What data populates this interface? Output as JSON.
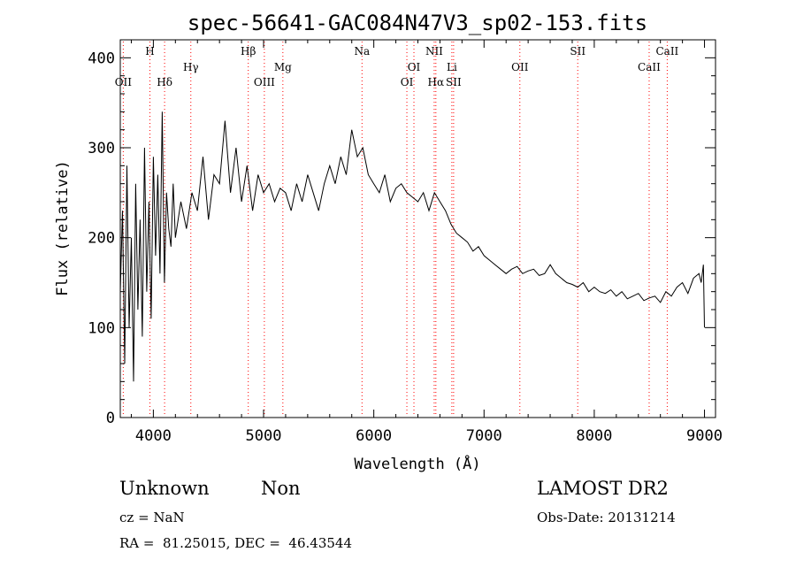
{
  "chart_data": {
    "type": "line",
    "title": "spec-56641-GAC084N47V3_sp02-153.fits",
    "xlabel": "Wavelength (Å)",
    "ylabel": "Flux (relative)",
    "xlim": [
      3700,
      9100
    ],
    "ylim": [
      0,
      420
    ],
    "xticks": [
      4000,
      5000,
      6000,
      7000,
      8000,
      9000
    ],
    "yticks": [
      0,
      100,
      200,
      300,
      400
    ],
    "line_color": "#000000",
    "marker_color": "#ff0000",
    "grid": false,
    "series": [
      {
        "x": [
          3700,
          3720,
          3740,
          3760,
          3780,
          3800,
          3820,
          3840,
          3860,
          3880,
          3900,
          3920,
          3940,
          3960,
          3980,
          4000,
          4020,
          4040,
          4060,
          4080,
          4100,
          4120,
          4140,
          4160,
          4180,
          4200,
          4250,
          4300,
          4350,
          4400,
          4450,
          4500,
          4550,
          4600,
          4650,
          4700,
          4750,
          4800,
          4850,
          4900,
          4950,
          5000,
          5050,
          5100,
          5150,
          5200,
          5250,
          5300,
          5350,
          5400,
          5450,
          5500,
          5550,
          5600,
          5650,
          5700,
          5750,
          5800,
          5850,
          5900,
          5950,
          6000,
          6050,
          6100,
          6150,
          6200,
          6250,
          6300,
          6350,
          6400,
          6450,
          6500,
          6550,
          6600,
          6650,
          6700,
          6750,
          6800,
          6850,
          6900,
          6950,
          7000,
          7050,
          7100,
          7150,
          7200,
          7250,
          7300,
          7350,
          7400,
          7450,
          7500,
          7550,
          7600,
          7650,
          7700,
          7750,
          7800,
          7850,
          7900,
          7950,
          8000,
          8050,
          8100,
          8150,
          8200,
          8250,
          8300,
          8350,
          8400,
          8450,
          8500,
          8550,
          8600,
          8650,
          8700,
          8750,
          8800,
          8850,
          8900,
          8950,
          8970,
          8990,
          9000
        ],
        "y": [
          140,
          230,
          60,
          280,
          100,
          200,
          40,
          260,
          120,
          220,
          90,
          300,
          140,
          240,
          110,
          290,
          180,
          270,
          160,
          340,
          150,
          250,
          210,
          190,
          260,
          200,
          240,
          210,
          250,
          230,
          290,
          220,
          270,
          260,
          330,
          250,
          300,
          240,
          280,
          230,
          270,
          250,
          260,
          240,
          255,
          250,
          230,
          260,
          240,
          270,
          250,
          230,
          260,
          280,
          260,
          290,
          270,
          320,
          290,
          300,
          270,
          260,
          250,
          270,
          240,
          255,
          260,
          250,
          245,
          240,
          250,
          230,
          250,
          240,
          230,
          215,
          205,
          200,
          195,
          185,
          190,
          180,
          175,
          170,
          165,
          160,
          165,
          168,
          160,
          163,
          165,
          158,
          160,
          170,
          160,
          155,
          150,
          148,
          145,
          150,
          140,
          145,
          140,
          138,
          142,
          135,
          140,
          132,
          135,
          138,
          130,
          133,
          135,
          128,
          140,
          135,
          145,
          150,
          138,
          155,
          160,
          150,
          170,
          100
        ]
      }
    ],
    "lines": [
      {
        "label": "OII",
        "x": 3727,
        "row": 3
      },
      {
        "label": "H",
        "x": 3969,
        "row": 1
      },
      {
        "label": "Hδ",
        "x": 4102,
        "row": 3
      },
      {
        "label": "Hγ",
        "x": 4340,
        "row": 2
      },
      {
        "label": "Hβ",
        "x": 4861,
        "row": 1
      },
      {
        "label": "OIII",
        "x": 5007,
        "row": 3
      },
      {
        "label": "Mg",
        "x": 5175,
        "row": 2
      },
      {
        "label": "Na",
        "x": 5893,
        "row": 1
      },
      {
        "label": "OI",
        "x": 6300,
        "row": 3
      },
      {
        "label": "OI",
        "x": 6364,
        "row": 2
      },
      {
        "label": "NII",
        "x": 6548,
        "row": 1
      },
      {
        "label": "Hα",
        "x": 6563,
        "row": 3
      },
      {
        "label": "Li",
        "x": 6708,
        "row": 2
      },
      {
        "label": "SII",
        "x": 6724,
        "row": 3
      },
      {
        "label": "OII",
        "x": 7325,
        "row": 2
      },
      {
        "label": "SII",
        "x": 7850,
        "row": 1
      },
      {
        "label": "CaII",
        "x": 8498,
        "row": 2
      },
      {
        "label": "CaII",
        "x": 8662,
        "row": 1
      }
    ]
  },
  "info": {
    "class": "Unknown",
    "subclass": "Non",
    "survey": "LAMOST DR2",
    "cz": "cz = NaN",
    "obs_date": "Obs-Date: 20131214",
    "coords": "RA =  81.25015, DEC =  46.43544"
  }
}
